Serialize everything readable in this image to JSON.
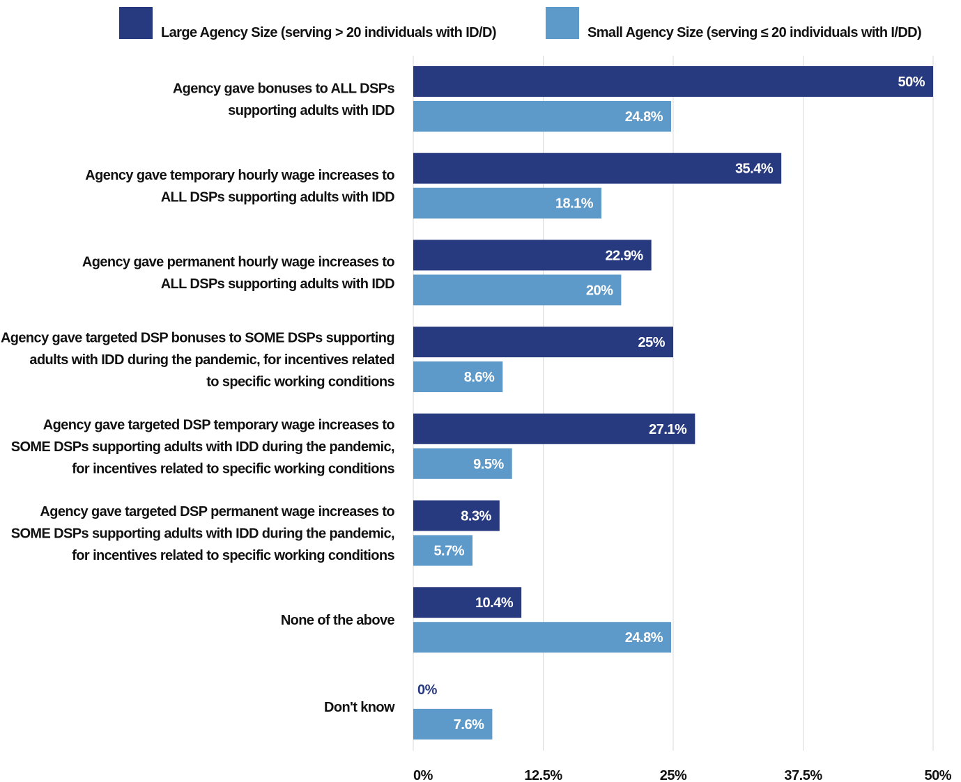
{
  "colors": {
    "large": "#283a7f",
    "small": "#5e9ac9",
    "grid": "#d9d9d9"
  },
  "legend": {
    "large_label": "Large Agency Size (serving > 20 individuals with ID/D)",
    "small_label": "Small Agency Size (serving ≤ 20 individuals with I/DD)"
  },
  "chart_data": {
    "type": "bar",
    "orientation": "horizontal",
    "categories": [
      [
        "Agency gave bonuses to ALL DSPs",
        "supporting adults with IDD"
      ],
      [
        "Agency gave temporary hourly wage increases to",
        "ALL DSPs supporting adults with IDD"
      ],
      [
        "Agency gave permanent hourly wage increases to",
        "ALL DSPs supporting adults with IDD"
      ],
      [
        "Agency gave targeted DSP bonuses to SOME DSPs supporting",
        "adults with IDD during the pandemic, for incentives related",
        "to specific working conditions"
      ],
      [
        "Agency gave targeted DSP temporary wage increases to",
        "SOME DSPs supporting adults with IDD during the pandemic,",
        "for incentives related to specific working conditions"
      ],
      [
        "Agency gave targeted DSP permanent wage increases to",
        "SOME DSPs supporting adults with IDD during the pandemic,",
        "for incentives related to specific working conditions"
      ],
      [
        "None of the above"
      ],
      [
        "Don't know"
      ]
    ],
    "series": [
      {
        "name": "Large Agency Size (serving > 20 individuals with ID/D)",
        "values": [
          50,
          35.4,
          22.9,
          25,
          27.1,
          8.3,
          10.4,
          0
        ],
        "labels": [
          "50%",
          "35.4%",
          "22.9%",
          "25%",
          "27.1%",
          "8.3%",
          "10.4%",
          "0%"
        ]
      },
      {
        "name": "Small Agency Size (serving ≤ 20 individuals with I/DD)",
        "values": [
          24.8,
          18.1,
          20,
          8.6,
          9.5,
          5.7,
          24.8,
          7.6
        ],
        "labels": [
          "24.8%",
          "18.1%",
          "20%",
          "8.6%",
          "9.5%",
          "5.7%",
          "24.8%",
          "7.6%"
        ]
      }
    ],
    "xlim": [
      0,
      50
    ],
    "ticks": [
      0,
      12.5,
      25,
      37.5,
      50
    ],
    "tick_labels": [
      "0%",
      "12.5%",
      "25%",
      "37.5%",
      "50%"
    ],
    "grid": true,
    "legend_position": "top"
  }
}
